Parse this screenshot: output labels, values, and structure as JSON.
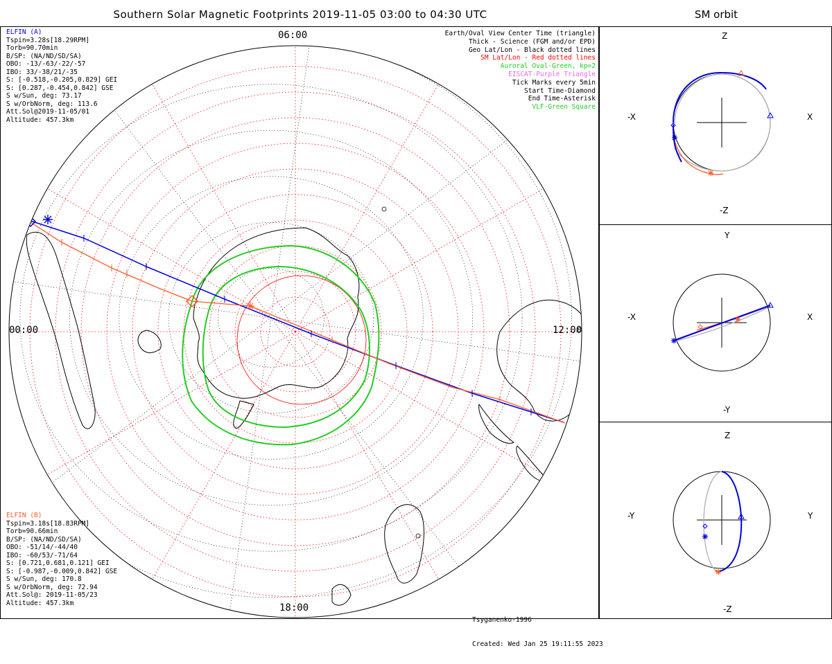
{
  "header": {
    "title": "Southern Solar Magnetic Footprints 2019-11-05 03:00 to 04:30 UTC",
    "orbit_title": "SM orbit"
  },
  "colors": {
    "elfin_a": "#0000dd",
    "elfin_b": "#ff5a28",
    "auroral": "#22cc22",
    "eiscat": "#ee66ee",
    "vlf": "#22cc22",
    "sm_grid": "#ff0000",
    "geo_grid": "#000000",
    "orbit_ghost": "#b0b0b0"
  },
  "hour_labels": {
    "top": "06:00",
    "left": "00:00",
    "right": "12:00",
    "bottom": "18:00"
  },
  "elfin_a": {
    "lines": [
      "ELFIN (A)",
      "Tspin=3.28s[18.29RPM]",
      "Torb=90.70min",
      "B/SP: (NA/ND/SD/SA)",
      "OBO: -13/-63/-22/-57",
      "IBO: 33/-38/21/-35",
      "S: [-0.518,-0.205,0.829] GEI",
      "S: [0.287,-0.454,0.842] GSE",
      "S w/Sun, deg: 73.17",
      "S w/OrbNorm, deg: 113.6",
      "Att.Sol@2019-11-05/01",
      "Altitude: 457.3km"
    ]
  },
  "elfin_b": {
    "lines": [
      "ELFIN (B)",
      "Tspin=3.18s[18.83RPM]",
      "Torb=90.66min",
      "B/SP: (NA/ND/SD/SA)",
      "OBO: -51/14/-44/40",
      "IBO: -60/53/-71/64",
      "S: [0.721,0.681,0.121] GEI",
      "S: [-0.987,-0.009,0.842] GSE",
      "S w/Sun, deg: 170.8",
      "S w/OrbNorm, deg: 72.94",
      "Att.Sol@: 2019-11-05/23",
      "Altitude: 457.3km"
    ]
  },
  "legend": {
    "items": [
      {
        "text": "Earth/Oval View Center Time (triangle)",
        "color": "#000000"
      },
      {
        "text": "Thick - Science (FGM and/or EPD)",
        "color": "#000000"
      },
      {
        "text": "Geo Lat/Lon - Black dotted lines",
        "color": "#000000"
      },
      {
        "text": "SM Lat/Lon - Red dotted lines",
        "color": "#ff0000"
      },
      {
        "text": "Auroral Oval-Green, kp=2",
        "color": "#22cc22"
      },
      {
        "text": "EISCAT-Purple Triangle",
        "color": "#ee66ee"
      },
      {
        "text": "Tick Marks every 5min",
        "color": "#000000"
      },
      {
        "text": "Start Time-Diamond",
        "color": "#000000"
      },
      {
        "text": "End Time-Asterisk",
        "color": "#000000"
      },
      {
        "text": "VLF-Green Square",
        "color": "#22cc22"
      }
    ]
  },
  "credit": {
    "model": "Tsyganenko-1996",
    "created": "Created: Wed Jan 25 19:11:55 2023"
  },
  "orbit_panels": {
    "xz": {
      "top": "Z",
      "bottom": "-Z",
      "left": "-X",
      "right": "X"
    },
    "xy": {
      "top": "Y",
      "bottom": "-Y",
      "left": "-X",
      "right": "X"
    },
    "yz": {
      "top": "Z",
      "bottom": "-Z",
      "left": "-Y",
      "right": "Y"
    }
  }
}
